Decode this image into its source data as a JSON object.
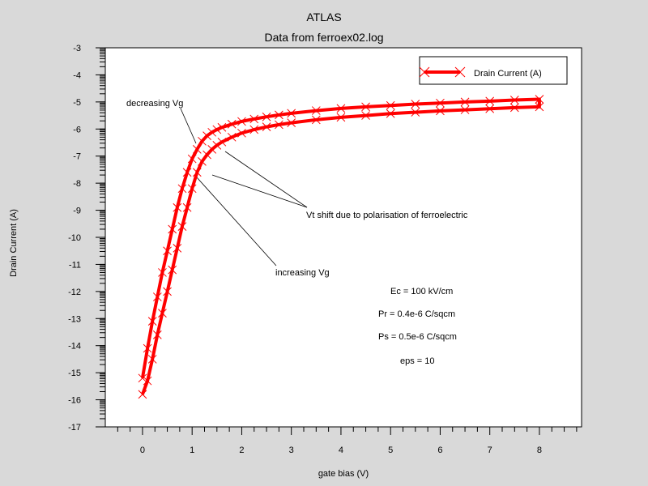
{
  "chart_data": {
    "type": "line",
    "title": "ATLAS",
    "subtitle": "Data from ferroex02.log",
    "xlabel": "gate bias (V)",
    "ylabel": "Drain Current (A)",
    "xlim": [
      -0.75,
      8.85
    ],
    "ylim": [
      -17,
      -3
    ],
    "x_ticks": [
      "0",
      "1",
      "2",
      "3",
      "4",
      "5",
      "6",
      "7",
      "8"
    ],
    "y_ticks": [
      "-3",
      "-4",
      "-5",
      "-6",
      "-7",
      "-8",
      "-9",
      "-10",
      "-11",
      "-12",
      "-13",
      "-14",
      "-15",
      "-16",
      "-17"
    ],
    "grid": false,
    "legend_position": "top-right",
    "series": [
      {
        "name": "Drain Current (A)",
        "color": "#ff0000",
        "marker": "x",
        "x": [
          0,
          0.1,
          0.2,
          0.3,
          0.4,
          0.5,
          0.6,
          0.7,
          0.8,
          0.9,
          1.0,
          1.1,
          1.2,
          1.3,
          1.4,
          1.5,
          1.6,
          1.8,
          2.0,
          2.25,
          2.5,
          2.75,
          3.0,
          3.5,
          4.0,
          4.5,
          5.0,
          5.5,
          6.0,
          6.5,
          7.0,
          7.5,
          8.0,
          8.0,
          7.5,
          7.0,
          6.5,
          6.0,
          5.5,
          5.0,
          4.5,
          4.0,
          3.5,
          3.0,
          2.75,
          2.5,
          2.25,
          2.0,
          1.8,
          1.6,
          1.5,
          1.4,
          1.3,
          1.2,
          1.1,
          1.0,
          0.9,
          0.8,
          0.7,
          0.6,
          0.5,
          0.4,
          0.3,
          0.2,
          0.1,
          0
        ],
        "y": [
          -15.8,
          -15.3,
          -14.5,
          -13.6,
          -12.8,
          -12.0,
          -11.2,
          -10.4,
          -9.6,
          -8.9,
          -8.2,
          -7.6,
          -7.2,
          -6.95,
          -6.75,
          -6.6,
          -6.48,
          -6.3,
          -6.15,
          -6.02,
          -5.92,
          -5.84,
          -5.77,
          -5.66,
          -5.57,
          -5.5,
          -5.43,
          -5.38,
          -5.33,
          -5.29,
          -5.25,
          -5.21,
          -5.18,
          -4.9,
          -4.93,
          -4.97,
          -5.0,
          -5.04,
          -5.08,
          -5.13,
          -5.18,
          -5.24,
          -5.32,
          -5.42,
          -5.48,
          -5.55,
          -5.63,
          -5.72,
          -5.82,
          -5.94,
          -6.02,
          -6.12,
          -6.25,
          -6.45,
          -6.75,
          -7.1,
          -7.6,
          -8.2,
          -8.9,
          -9.7,
          -10.5,
          -11.3,
          -12.2,
          -13.1,
          -14.1,
          -15.2
        ]
      }
    ],
    "annotations": [
      {
        "text": "decreasing Vg"
      },
      {
        "text": "Vt shift due to polarisation of ferroelectric"
      },
      {
        "text": "increasing Vg"
      },
      {
        "text": "Ec = 100 kV/cm"
      },
      {
        "text": "Pr = 0.4e-6 C/sqcm"
      },
      {
        "text": "Ps = 0.5e-6 C/sqcm"
      },
      {
        "text": "eps = 10"
      }
    ]
  }
}
